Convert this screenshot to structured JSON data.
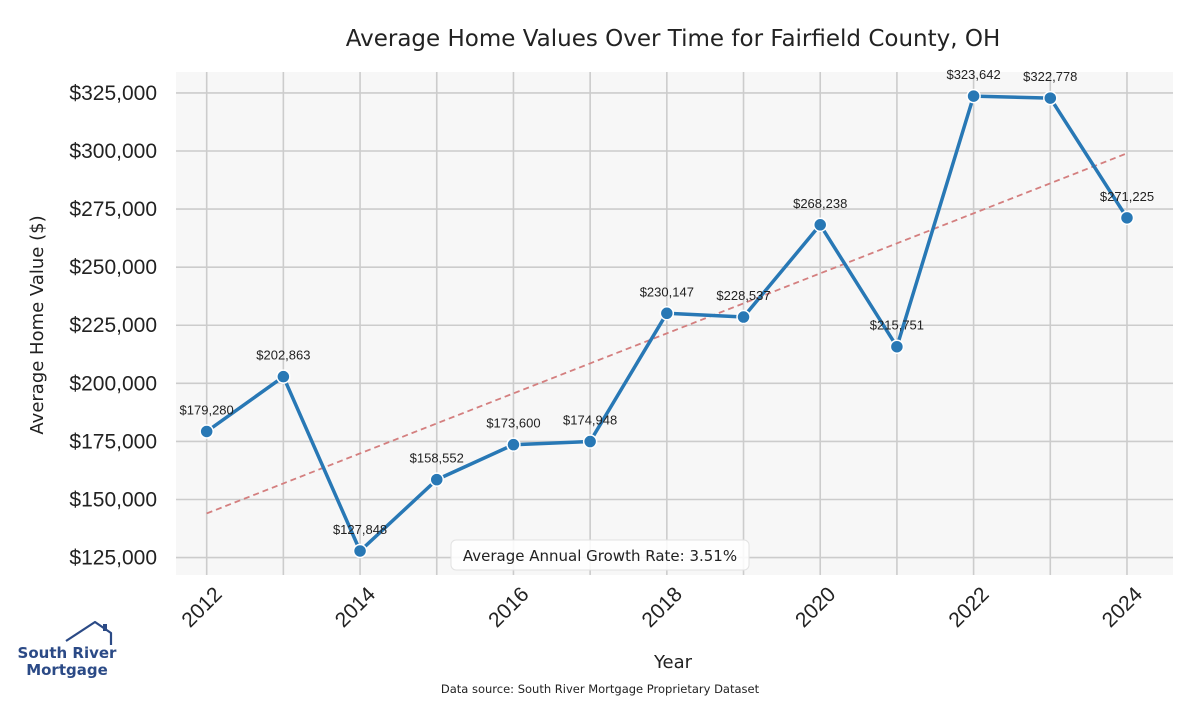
{
  "chart_data": {
    "type": "line",
    "title": "Average Home Values Over Time for Fairfield County, OH",
    "xlabel": "Year",
    "ylabel": "Average Home Value ($)",
    "x": [
      2012,
      2013,
      2014,
      2015,
      2016,
      2017,
      2018,
      2019,
      2020,
      2021,
      2022,
      2023,
      2024
    ],
    "series": [
      {
        "values": [
          179280,
          202863,
          127848,
          158552,
          173600,
          174948,
          230147,
          228537,
          268238,
          215751,
          323642,
          322778,
          271225
        ],
        "color": "#2878b5",
        "data_labels": [
          "$179,280",
          "$202,863",
          "$127,848",
          "$158,552",
          "$173,600",
          "$174,948",
          "$230,147",
          "$228,537",
          "$268,238",
          "$215,751",
          "$323,642",
          "$322,778",
          "$271,225"
        ]
      }
    ],
    "trendline": {
      "style": "dashed",
      "color": "#d47f7f",
      "start": [
        2012,
        144000
      ],
      "end": [
        2024,
        299000
      ]
    },
    "xticks": [
      2012,
      2014,
      2016,
      2018,
      2020,
      2022,
      2024
    ],
    "xtick_labels": [
      "2012",
      "2014",
      "2016",
      "2018",
      "2020",
      "2022",
      "2024"
    ],
    "yticks": [
      125000,
      150000,
      175000,
      200000,
      225000,
      250000,
      275000,
      300000,
      325000
    ],
    "ytick_labels": [
      "$125,000",
      "$150,000",
      "$175,000",
      "$200,000",
      "$225,000",
      "$250,000",
      "$275,000",
      "$300,000",
      "$325,000"
    ],
    "xlim": [
      2011.6,
      2024.6
    ],
    "ylim": [
      117500,
      334000
    ],
    "grid": true,
    "annotation": "Average Annual Growth Rate: 3.51%"
  },
  "footer": {
    "source": "Data source: South River Mortgage Proprietary Dataset"
  },
  "logo": {
    "line1": "South River",
    "line2": "Mortgage"
  },
  "colors": {
    "plot_bg": "#f7f7f7",
    "grid": "#cccccc",
    "line": "#2878b5",
    "trend": "#d47f7f",
    "logo": "#2b4a86"
  }
}
